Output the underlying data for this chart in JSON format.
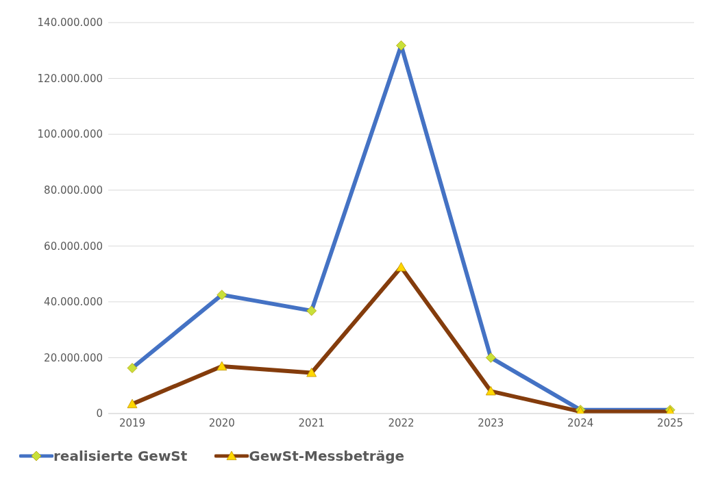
{
  "chart_data": {
    "type": "line",
    "categories": [
      "2019",
      "2020",
      "2021",
      "2022",
      "2023",
      "2024",
      "2025"
    ],
    "series": [
      {
        "name": "realisierte GewSt",
        "color": "#4472c4",
        "marker": "diamond",
        "values": [
          16300000,
          42500000,
          36800000,
          131800000,
          20000000,
          1300000,
          1300000
        ]
      },
      {
        "name": "GewSt-Messbeträge",
        "color": "#843c0c",
        "marker": "triangle",
        "values": [
          3400000,
          16900000,
          14600000,
          52400000,
          8000000,
          700000,
          700000
        ]
      }
    ],
    "ylim": [
      0,
      140000000
    ],
    "yticks": [
      {
        "value": 0,
        "label": "0"
      },
      {
        "value": 20000000,
        "label": "20.000.000"
      },
      {
        "value": 40000000,
        "label": "40.000.000"
      },
      {
        "value": 60000000,
        "label": "60.000.000"
      },
      {
        "value": 80000000,
        "label": "80.000.000"
      },
      {
        "value": 100000000,
        "label": "100.000.000"
      },
      {
        "value": 120000000,
        "label": "120.000.000"
      },
      {
        "value": 140000000,
        "label": "140.000.000"
      }
    ],
    "grid": "y",
    "legend": "bottom",
    "line_style": "solid"
  }
}
